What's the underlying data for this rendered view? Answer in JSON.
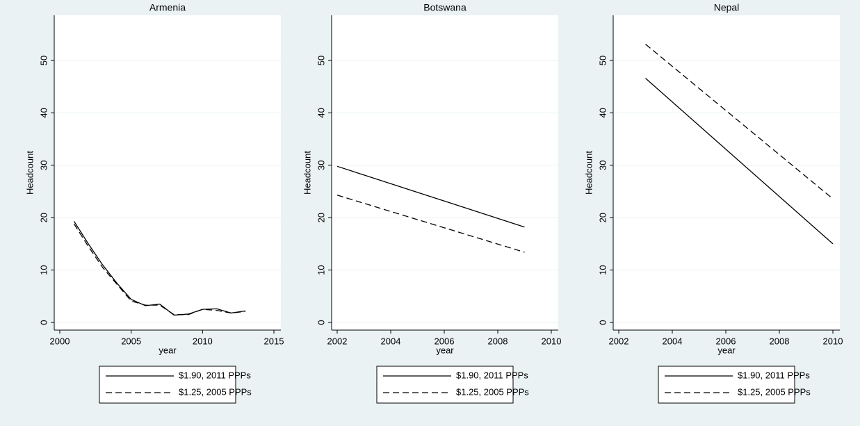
{
  "chart_data": [
    {
      "type": "line",
      "title": "Armenia",
      "x_label": "year",
      "y_label": "Headcount",
      "x": [
        2001,
        2002,
        2003,
        2004,
        2005,
        2006,
        2007,
        2008,
        2009,
        2010,
        2011,
        2012,
        2013
      ],
      "series": [
        {
          "name": "$1.90, 2011 PPPs",
          "color": "#000000",
          "dash": "solid",
          "values": [
            19.3,
            15.0,
            11.0,
            7.5,
            4.4,
            3.2,
            3.5,
            1.4,
            1.6,
            2.5,
            2.6,
            1.8,
            2.2
          ]
        },
        {
          "name": "$1.25, 2005 PPPs",
          "color": "#000000",
          "dash": "dashed",
          "values": [
            18.8,
            14.5,
            10.5,
            7.3,
            4.1,
            3.3,
            3.3,
            1.5,
            1.5,
            2.5,
            2.3,
            1.8,
            2.1
          ]
        }
      ],
      "xlim": [
        2000,
        2015
      ],
      "xticks": [
        2000,
        2005,
        2010,
        2015
      ],
      "ylim": [
        0,
        50
      ],
      "yticks": [
        0,
        10,
        20,
        30,
        40,
        50
      ],
      "grid": true
    },
    {
      "type": "line",
      "title": "Botswana",
      "x_label": "year",
      "y_label": "Headcount",
      "x": [
        2002,
        2009
      ],
      "series": [
        {
          "name": "$1.90, 2011 PPPs",
          "color": "#000000",
          "dash": "solid",
          "values": [
            29.8,
            18.2
          ]
        },
        {
          "name": "$1.25, 2005 PPPs",
          "color": "#000000",
          "dash": "dashed",
          "values": [
            24.3,
            13.4
          ]
        }
      ],
      "xlim": [
        2002,
        2010
      ],
      "xticks": [
        2002,
        2004,
        2006,
        2008,
        2010
      ],
      "ylim": [
        0,
        50
      ],
      "yticks": [
        0,
        10,
        20,
        30,
        40,
        50
      ],
      "grid": true
    },
    {
      "type": "line",
      "title": "Nepal",
      "x_label": "year",
      "y_label": "Headcount",
      "x": [
        2003,
        2010
      ],
      "series": [
        {
          "name": "$1.90, 2011 PPPs",
          "color": "#000000",
          "dash": "solid",
          "values": [
            46.6,
            15.0
          ]
        },
        {
          "name": "$1.25, 2005 PPPs",
          "color": "#000000",
          "dash": "dashed",
          "values": [
            53.1,
            23.6
          ]
        }
      ],
      "xlim": [
        2002,
        2010
      ],
      "xticks": [
        2002,
        2004,
        2006,
        2008,
        2010
      ],
      "ylim": [
        0,
        50
      ],
      "yticks": [
        0,
        10,
        20,
        30,
        40,
        50
      ],
      "grid": true
    }
  ]
}
